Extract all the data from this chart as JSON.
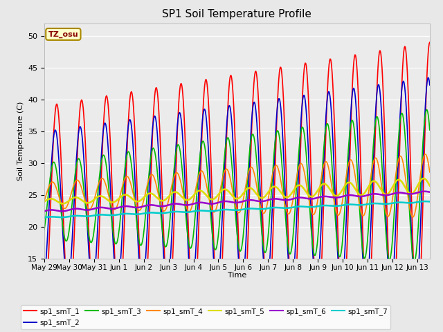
{
  "title": "SP1 Soil Temperature Profile",
  "xlabel": "Time",
  "ylabel": "Soil Temperature (C)",
  "ylim": [
    15,
    52
  ],
  "yticks": [
    15,
    20,
    25,
    30,
    35,
    40,
    45,
    50
  ],
  "n_days": 15.5,
  "n_points": 744,
  "tz_label": "TZ_osu",
  "legend_labels": [
    "sp1_smT_1",
    "sp1_smT_2",
    "sp1_smT_3",
    "sp1_smT_4",
    "sp1_smT_5",
    "sp1_smT_6",
    "sp1_smT_7"
  ],
  "line_colors": [
    "#ff0000",
    "#0000cc",
    "#00bb00",
    "#ff8800",
    "#dddd00",
    "#9900cc",
    "#00cccc"
  ],
  "line_widths": [
    1.2,
    1.2,
    1.2,
    1.2,
    1.8,
    1.8,
    1.8
  ],
  "fig_facecolor": "#e8e8e8",
  "ax_facecolor": "#ebebeb",
  "xtick_labels": [
    "May 29",
    "May 30",
    "May 31",
    "Jun 1",
    "Jun 2",
    "Jun 3",
    "Jun 4",
    "Jun 5",
    "Jun 6",
    "Jun 7",
    "Jun 8",
    "Jun 9",
    "Jun 10",
    "Jun 11",
    "Jun 12",
    "Jun 13"
  ],
  "xtick_positions": [
    0,
    1,
    2,
    3,
    4,
    5,
    6,
    7,
    8,
    9,
    10,
    11,
    12,
    13,
    14,
    15
  ]
}
